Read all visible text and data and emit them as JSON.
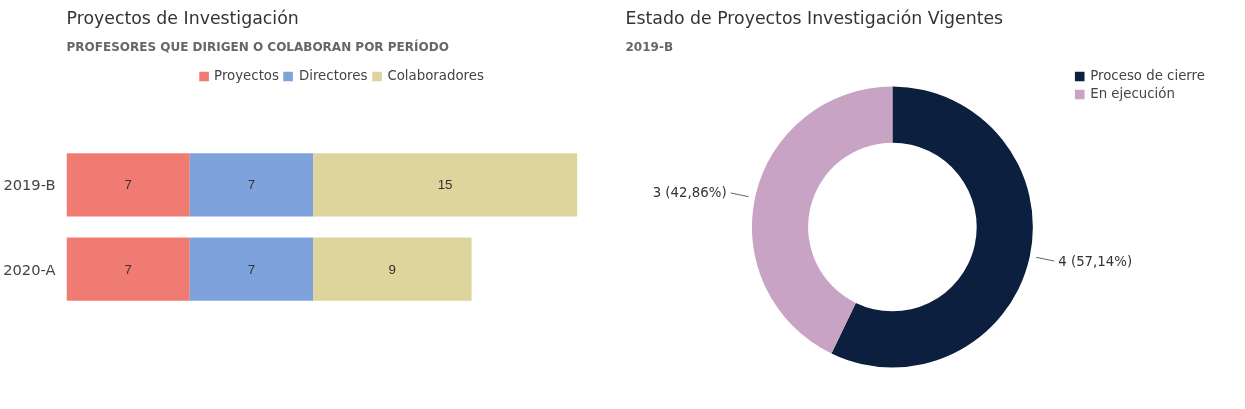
{
  "chart_data": [
    {
      "type": "bar",
      "title": "Proyectos de Investigación",
      "subtitle": "PROFESORES QUE DIRIGEN O COLABORAN POR PERÍODO",
      "orientation": "horizontal",
      "stacked": true,
      "categories": [
        "2019-B",
        "2020-A"
      ],
      "series": [
        {
          "name": "Proyectos",
          "color": "#f07b72",
          "values": [
            7,
            7
          ]
        },
        {
          "name": "Directores",
          "color": "#7ea3dc",
          "values": [
            7,
            7
          ]
        },
        {
          "name": "Colaboradores",
          "color": "#ddd59b",
          "values": [
            15,
            9
          ]
        }
      ],
      "tick_labels": "y",
      "legend": "top",
      "data_labels": true
    },
    {
      "type": "donut",
      "title": "Estado de Proyectos Investigación Vigentes",
      "subtitle": "2019-B",
      "categories": [
        "Proceso de cierre",
        "En ejecución"
      ],
      "values": [
        4,
        3
      ],
      "colors": [
        "#0d1f3f",
        "#c9a3c4"
      ],
      "value_labels": [
        "4 (57,14%)",
        "3 (42,86%)"
      ],
      "legend": "top right"
    }
  ]
}
